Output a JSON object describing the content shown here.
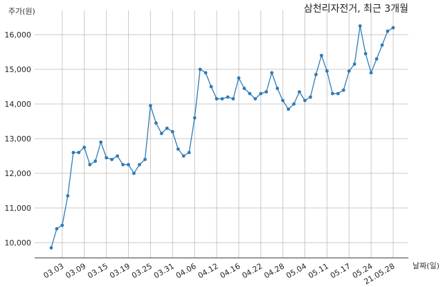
{
  "chart_data": {
    "type": "line",
    "title": "삼천리자전거, 최근 3개월",
    "ylabel": "주가(원)",
    "xlabel": "날짜(일)",
    "ylim": [
      9600,
      16600
    ],
    "yticks": [
      10000,
      11000,
      12000,
      13000,
      14000,
      15000,
      16000
    ],
    "ytick_labels": [
      "10,000",
      "11,000",
      "12,000",
      "13,000",
      "14,000",
      "15,000",
      "16,000"
    ],
    "xticks": [
      "03.03",
      "03.09",
      "03.15",
      "03.19",
      "03.25",
      "03.31",
      "04.06",
      "04.12",
      "04.16",
      "04.22",
      "04.28",
      "05.04",
      "05.11",
      "05.17",
      "05.24",
      "21.05.28"
    ],
    "xtick_index": [
      2,
      6,
      10,
      14,
      18,
      22,
      26,
      30,
      34,
      38,
      42,
      46,
      50,
      54,
      58,
      62
    ],
    "grid": true,
    "color": "#2e7ab5",
    "series": [
      {
        "values": [
          9850,
          10400,
          10500,
          11350,
          12600,
          12600,
          12750,
          12250,
          12350,
          12900,
          12450,
          12400,
          12500,
          12250,
          12250,
          12000,
          12250,
          12400,
          13950,
          13450,
          13150,
          13300,
          13200,
          12700,
          12500,
          12600,
          13600,
          15000,
          14900,
          14500,
          14150,
          14150,
          14200,
          14150,
          14750,
          14450,
          14300,
          14150,
          14300,
          14350,
          14900,
          14450,
          14100,
          13850,
          14000,
          14350,
          14100,
          14200,
          14850,
          15400,
          14950,
          14300,
          14300,
          14400,
          14950,
          15150,
          16250,
          15450,
          14900,
          15300,
          15700,
          16100,
          16200
        ]
      }
    ]
  }
}
